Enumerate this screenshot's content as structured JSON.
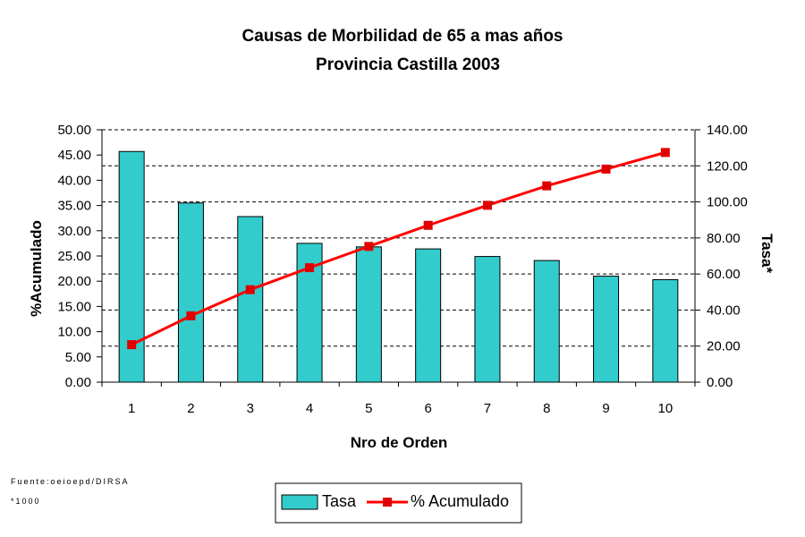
{
  "chart_data": {
    "type": "bar",
    "title": "Causas de Morbilidad de 65 a mas  años",
    "subtitle": "Provincia Castilla 2003",
    "xlabel": "Nro de Orden",
    "ylabel_left": "%Acumulado",
    "ylabel_right": "Tasa*",
    "categories": [
      "1",
      "2",
      "3",
      "4",
      "5",
      "6",
      "7",
      "8",
      "9",
      "10"
    ],
    "left_ticks": [
      "0.00",
      "5.00",
      "10.00",
      "15.00",
      "20.00",
      "25.00",
      "30.00",
      "35.00",
      "40.00",
      "45.00",
      "50.00"
    ],
    "right_ticks": [
      "0.00",
      "20.00",
      "40.00",
      "60.00",
      "80.00",
      "100.00",
      "120.00",
      "140.00"
    ],
    "ylim_left": [
      0,
      50
    ],
    "ylim_right": [
      0,
      140
    ],
    "grid": true,
    "series": [
      {
        "name": "Tasa",
        "kind": "bar",
        "color": "#33CCCC",
        "values": [
          45.7,
          35.5,
          32.8,
          27.5,
          26.8,
          26.4,
          24.9,
          24.1,
          21.0,
          20.3
        ]
      },
      {
        "name": "% Acumulado",
        "kind": "line",
        "color": "#FF0000",
        "marker_color": "#E00000",
        "values": [
          20.8,
          36.8,
          51.3,
          63.5,
          75.3,
          87.0,
          98.1,
          108.9,
          118.2,
          127.4
        ]
      }
    ],
    "legend_position": "bottom"
  },
  "footnotes": {
    "source": "Fuente:oeioepd/DIRSA",
    "note": "*1000"
  }
}
